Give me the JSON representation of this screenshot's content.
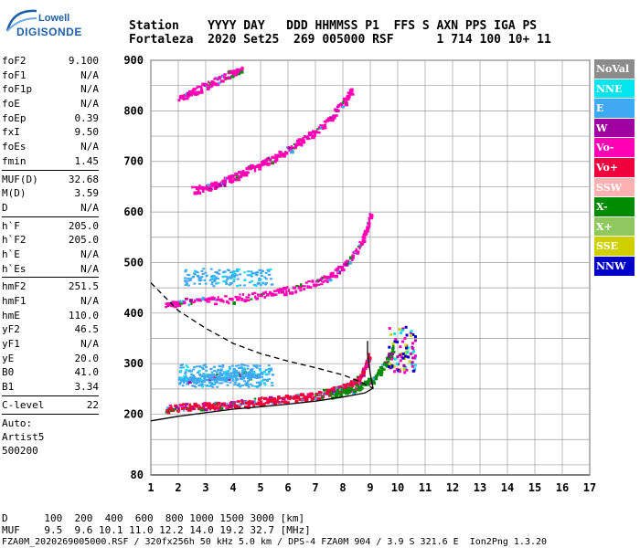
{
  "logo": {
    "line1": "Lowell",
    "line2": "DIGISONDE"
  },
  "header": {
    "row1": "Station    YYYY DAY   DDD HHMMSS P1  FFS S AXN PPS IGA PS",
    "row2": "Fortaleza  2020 Set25  269 005000 RSF      1 714 100 10+ 11"
  },
  "params": [
    [
      {
        "k": "foF2",
        "v": "9.100"
      },
      {
        "k": "foF1",
        "v": "N/A"
      },
      {
        "k": "foF1p",
        "v": "N/A"
      },
      {
        "k": "foE",
        "v": "N/A"
      },
      {
        "k": "foEp",
        "v": "0.39"
      },
      {
        "k": "fxI",
        "v": "9.50"
      },
      {
        "k": "foEs",
        "v": "N/A"
      },
      {
        "k": "fmin",
        "v": "1.45"
      }
    ],
    [
      {
        "k": "MUF(D)",
        "v": "32.68"
      },
      {
        "k": "M(D)",
        "v": "3.59"
      },
      {
        "k": "D",
        "v": "N/A"
      }
    ],
    [
      {
        "k": "h`F",
        "v": "205.0"
      },
      {
        "k": "h`F2",
        "v": "205.0"
      },
      {
        "k": "h`E",
        "v": "N/A"
      },
      {
        "k": "h`Es",
        "v": "N/A"
      }
    ],
    [
      {
        "k": "hmF2",
        "v": "251.5"
      },
      {
        "k": "hmF1",
        "v": "N/A"
      },
      {
        "k": "hmE",
        "v": "110.0"
      },
      {
        "k": "yF2",
        "v": "46.5"
      },
      {
        "k": "yF1",
        "v": "N/A"
      },
      {
        "k": "yE",
        "v": "20.0"
      },
      {
        "k": "B0",
        "v": "41.0"
      },
      {
        "k": "B1",
        "v": "3.34"
      }
    ],
    [
      {
        "k": "C-level",
        "v": "22"
      }
    ]
  ],
  "auto": {
    "l1": "Auto:",
    "l2": "Artist5",
    "l3": "500200"
  },
  "legend": [
    {
      "label": "NoVal",
      "color": "#8c8c8c"
    },
    {
      "label": "NNE",
      "color": "#00e5ee"
    },
    {
      "label": "E",
      "color": "#3fa9f5"
    },
    {
      "label": "W",
      "color": "#a000a0"
    },
    {
      "label": "Vo-",
      "color": "#ff00b4"
    },
    {
      "label": "Vo+",
      "color": "#f0003c"
    },
    {
      "label": "SSW",
      "color": "#ffb0b0"
    },
    {
      "label": "X-",
      "color": "#008c00"
    },
    {
      "label": "X+",
      "color": "#90c860"
    },
    {
      "label": "SSE",
      "color": "#d0d000"
    },
    {
      "label": "NNW",
      "color": "#0000c8"
    }
  ],
  "footer": {
    "line1": "D      100  200  400  600  800 1000 1500 3000 [km]",
    "line2": "MUF    9.5  9.6 10.1 11.0 12.2 14.0 19.2 32.7 [MHz]",
    "line3": "FZA0M_2020269005000.RSF / 320fx256h 50 kHz 5.0 km / DPS-4 FZA0M 904 / 3.9 S 321.6 E  Ion2Png 1.3.20"
  },
  "chart_data": {
    "type": "scatter",
    "title": "",
    "xlabel": "",
    "ylabel": "",
    "xlim": [
      1,
      17
    ],
    "ylim": [
      80,
      900
    ],
    "x_ticks": [
      1,
      2,
      3,
      4,
      5,
      6,
      7,
      8,
      9,
      10,
      11,
      12,
      13,
      14,
      15,
      16,
      17
    ],
    "y_ticks": [
      80,
      200,
      300,
      400,
      500,
      600,
      700,
      800,
      900
    ],
    "grid": true,
    "legend_position": "right",
    "traces": [
      {
        "name": "O-trace F2",
        "color": "#f0003c",
        "points": [
          [
            1.5,
            213
          ],
          [
            2,
            215
          ],
          [
            2.5,
            217
          ],
          [
            3,
            218
          ],
          [
            3.5,
            220
          ],
          [
            4,
            222
          ],
          [
            4.5,
            224
          ],
          [
            5,
            228
          ],
          [
            5.5,
            230
          ],
          [
            6,
            233
          ],
          [
            6.5,
            236
          ],
          [
            7,
            240
          ],
          [
            7.5,
            246
          ],
          [
            8,
            254
          ],
          [
            8.3,
            262
          ],
          [
            8.6,
            275
          ],
          [
            8.8,
            295
          ],
          [
            8.9,
            320
          ]
        ]
      },
      {
        "name": "X-trace F2",
        "color": "#008c00",
        "points": [
          [
            7.5,
            240
          ],
          [
            8,
            246
          ],
          [
            8.5,
            256
          ],
          [
            9,
            268
          ],
          [
            9.3,
            285
          ],
          [
            9.6,
            310
          ],
          [
            9.8,
            335
          ]
        ]
      },
      {
        "name": "2nd hop",
        "color": "#ff00b4",
        "points": [
          [
            1.5,
            420
          ],
          [
            2,
            423
          ],
          [
            3,
            426
          ],
          [
            4,
            430
          ],
          [
            5,
            438
          ],
          [
            6,
            448
          ],
          [
            7,
            462
          ],
          [
            7.5,
            475
          ],
          [
            8,
            495
          ],
          [
            8.5,
            525
          ],
          [
            8.8,
            560
          ],
          [
            9,
            605
          ]
        ]
      },
      {
        "name": "3rd hop",
        "color": "#ff00b4",
        "points": [
          [
            2.5,
            645
          ],
          [
            3,
            650
          ],
          [
            3.5,
            660
          ],
          [
            4,
            670
          ],
          [
            4.5,
            685
          ],
          [
            5,
            695
          ],
          [
            5.5,
            710
          ],
          [
            6,
            725
          ],
          [
            6.5,
            745
          ],
          [
            7,
            760
          ],
          [
            7.5,
            785
          ],
          [
            8,
            820
          ],
          [
            8.3,
            845
          ]
        ]
      },
      {
        "name": "4th hop",
        "color": "#ff00b4",
        "points": [
          [
            2,
            825
          ],
          [
            2.5,
            840
          ],
          [
            3,
            852
          ],
          [
            3.5,
            865
          ],
          [
            4,
            878
          ],
          [
            4.3,
            888
          ]
        ]
      },
      {
        "name": "E-region oblique",
        "color": "#3fa9f5",
        "points": [
          [
            2,
            270
          ],
          [
            2.5,
            272
          ],
          [
            3,
            273
          ],
          [
            3.5,
            275
          ],
          [
            4,
            278
          ],
          [
            4.5,
            280
          ],
          [
            5,
            282
          ]
        ]
      }
    ],
    "profile": {
      "name": "true height",
      "color": "#000000",
      "points": [
        [
          1,
          187
        ],
        [
          2,
          196
        ],
        [
          3,
          203
        ],
        [
          4,
          210
        ],
        [
          5,
          215
        ],
        [
          6,
          220
        ],
        [
          7,
          226
        ],
        [
          8,
          234
        ],
        [
          8.8,
          242
        ],
        [
          9.1,
          251.5
        ],
        [
          9.0,
          280
        ],
        [
          8.9,
          320
        ],
        [
          8.9,
          345
        ]
      ]
    },
    "profile_extension": {
      "name": "extrapolation",
      "dashed": true,
      "color": "#000000",
      "points": [
        [
          1,
          460
        ],
        [
          2,
          405
        ],
        [
          3,
          370
        ],
        [
          4,
          340
        ],
        [
          5,
          320
        ],
        [
          6,
          305
        ],
        [
          7,
          292
        ],
        [
          8,
          278
        ],
        [
          8.6,
          265
        ],
        [
          9.1,
          251.5
        ]
      ]
    }
  }
}
